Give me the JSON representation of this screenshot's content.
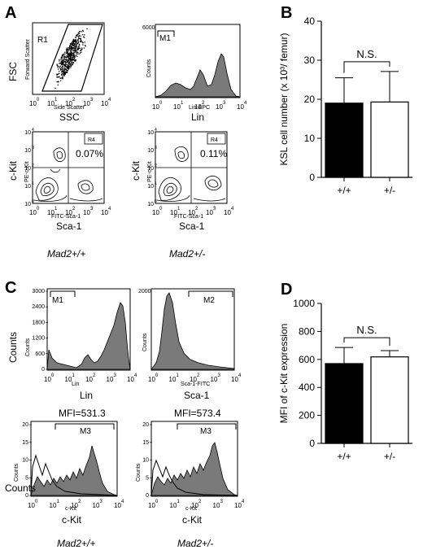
{
  "panels": {
    "A": "A",
    "B": "B",
    "C": "C",
    "D": "D"
  },
  "flow_A": {
    "scatter": {
      "ylabel": "FSC",
      "ylabel_small": "Forward Scatter",
      "xlabel": "SSC",
      "xlabel_small": "Side Scatter",
      "gate": "R1"
    },
    "lin_hist": {
      "ylabel_small": "Counts",
      "ymax": "6000",
      "xlabel": "Lin",
      "xlabel_small": "Lin-APC",
      "marker": "M1"
    },
    "contour_wt": {
      "ylabel": "c-Kit",
      "ylabel_small": "PE-c-Kit",
      "xlabel": "Sca-1",
      "xlabel_small": "FITC-Sca-1",
      "gate": "R4",
      "pct": "0.07%"
    },
    "contour_het": {
      "ylabel": "c-Kit",
      "ylabel_small": "PE-c-Kit",
      "xlabel": "Sca-1",
      "xlabel_small": "FITC-Sca-1",
      "gate": "R4",
      "pct": "0.11%"
    },
    "geno_wt": "Mad2+/+",
    "geno_het": "Mad2+/-"
  },
  "flow_C": {
    "lin_hist": {
      "ylabel": "Counts",
      "ylabel_small": "Counts",
      "yticks": [
        "0",
        "600",
        "1200",
        "1800",
        "2400",
        "3000"
      ],
      "xlabel": "Lin",
      "xlabel_small": "Lin",
      "marker": "M1"
    },
    "sca_hist": {
      "ylabel_small": "Counts",
      "ymax": "2000",
      "xlabel": "Sca-1",
      "xlabel_small": "Sca-1-FITC",
      "marker": "M2"
    },
    "ckit_wt": {
      "ylabel": "Counts",
      "ylabel_small": "Counts",
      "yticks": [
        "0",
        "5",
        "10",
        "15",
        "20"
      ],
      "xlabel": "c-Kit",
      "xlabel_small": "c-Kit",
      "marker": "M3",
      "mfi": "MFI=531.3"
    },
    "ckit_het": {
      "ylabel_small": "Counts",
      "yticks": [
        "0",
        "5",
        "10",
        "15",
        "20"
      ],
      "xlabel": "c-Kit",
      "xlabel_small": "c-Kit",
      "marker": "M3",
      "mfi": "MFI=573.4"
    },
    "geno_wt": "Mad2+/+",
    "geno_het": "Mad2+/-"
  },
  "log_ticks": [
    "10",
    "10",
    "10",
    "10",
    "10"
  ],
  "log_exps": [
    "0",
    "1",
    "2",
    "3",
    "4"
  ],
  "chart_data": [
    {
      "type": "bar",
      "panel": "B",
      "categories": [
        "+/+",
        "+/-"
      ],
      "values": [
        19,
        19.3
      ],
      "errors": [
        6.5,
        7.8
      ],
      "bar_colors": [
        "#000000",
        "#ffffff"
      ],
      "ylabel": "KSL cell number (x 10³/ femur)",
      "ylim": [
        0,
        40
      ],
      "yticks": [
        "0",
        "10",
        "20",
        "30",
        "40"
      ],
      "annotation": "N.S."
    },
    {
      "type": "bar",
      "panel": "D",
      "categories": [
        "+/+",
        "+/-"
      ],
      "values": [
        570,
        618
      ],
      "errors": [
        115,
        45
      ],
      "bar_colors": [
        "#000000",
        "#ffffff"
      ],
      "ylabel": "MFI of c-Kit expression",
      "ylim": [
        0,
        1000
      ],
      "yticks": [
        "0",
        "200",
        "400",
        "600",
        "800",
        "1000"
      ],
      "annotation": "N.S."
    }
  ]
}
